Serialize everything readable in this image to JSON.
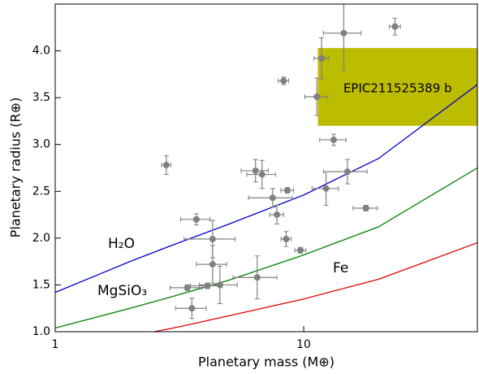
{
  "chart_data": {
    "type": "scatter",
    "xscale": "log",
    "x_label": "Planetary mass (M⊕)",
    "y_label": "Planetary radius (R⊕)",
    "xlim": [
      1,
      50
    ],
    "ylim": [
      1.0,
      4.5
    ],
    "xticks": [
      1,
      10
    ],
    "yticks": [
      {
        "value": 1.0,
        "label": "1.0"
      },
      {
        "value": 1.5,
        "label": "1.5"
      },
      {
        "value": 2.0,
        "label": "2.0"
      },
      {
        "value": 2.5,
        "label": "2.5"
      },
      {
        "value": 3.0,
        "label": "3.0"
      },
      {
        "value": 3.5,
        "label": "3.5"
      },
      {
        "value": 4.0,
        "label": "4.0"
      }
    ],
    "region": {
      "label": "EPIC211525389 b",
      "color": "#bcbc00",
      "xlim": [
        11.4,
        50
      ],
      "ylim": [
        3.2,
        4.03
      ]
    },
    "curves": [
      {
        "name": "H₂O",
        "color": "#0000cc",
        "x": [
          1,
          2,
          3,
          5,
          10,
          20,
          50
        ],
        "y": [
          1.42,
          1.75,
          1.93,
          2.15,
          2.46,
          2.85,
          3.64
        ]
      },
      {
        "name": "MgSiO₃",
        "color": "#007f00",
        "x": [
          1,
          2,
          3,
          5,
          10,
          20,
          50
        ],
        "y": [
          1.04,
          1.25,
          1.38,
          1.55,
          1.82,
          2.12,
          2.75
        ]
      },
      {
        "name": "Fe",
        "color": "#e00000",
        "x": [
          2.5,
          3,
          5,
          10,
          20,
          50
        ],
        "y": [
          1.0,
          1.04,
          1.17,
          1.35,
          1.56,
          1.95
        ]
      }
    ],
    "points": {
      "color": "#808080",
      "x": [
        23.3,
        14.5,
        11.8,
        8.3,
        11.3,
        13.2,
        2.8,
        6.4,
        6.8,
        15.0,
        8.6,
        12.3,
        7.5,
        3.7,
        7.8,
        17.8,
        4.3,
        8.5,
        9.7,
        4.3,
        6.5,
        4.6,
        4.1,
        3.4,
        3.55
      ],
      "y": [
        4.26,
        4.19,
        3.92,
        3.68,
        3.51,
        3.05,
        2.78,
        2.72,
        2.68,
        2.71,
        2.51,
        2.53,
        2.43,
        2.2,
        2.25,
        2.32,
        1.99,
        1.99,
        1.87,
        1.72,
        1.58,
        1.5,
        1.49,
        1.47,
        1.25
      ],
      "xerr": [
        1.2,
        2.5,
        0.8,
        0.4,
        1.2,
        1.6,
        0.12,
        0.8,
        0.9,
        3.0,
        0.5,
        1.5,
        1.5,
        0.5,
        0.5,
        2.0,
        1.0,
        0.4,
        0.5,
        0.6,
        1.3,
        0.8,
        0.6,
        0.5,
        0.5
      ],
      "yerr": [
        0.09,
        0.4,
        0.22,
        0.04,
        0.2,
        0.06,
        0.1,
        0.12,
        0.15,
        0.13,
        0.03,
        0.18,
        0.1,
        0.06,
        0.1,
        0.03,
        0.2,
        0.08,
        0.03,
        0.2,
        0.23,
        0.2,
        0.03,
        0.03,
        0.11
      ]
    }
  }
}
